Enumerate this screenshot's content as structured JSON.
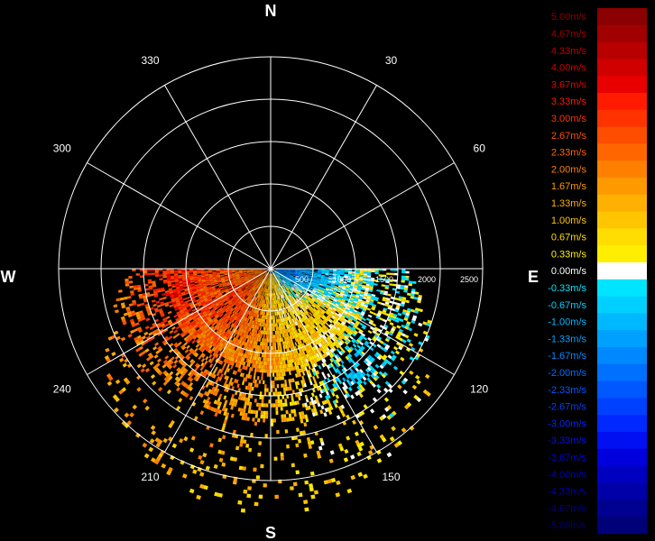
{
  "chart_data": {
    "type": "polar-radar-scan",
    "cardinal_labels": {
      "north": "N",
      "east": "E",
      "south": "S",
      "west": "W"
    },
    "azimuth_labels": [
      {
        "angle": 30,
        "text": "30"
      },
      {
        "angle": 60,
        "text": "60"
      },
      {
        "angle": 120,
        "text": "120"
      },
      {
        "angle": 150,
        "text": "150"
      },
      {
        "angle": 210,
        "text": "210"
      },
      {
        "angle": 240,
        "text": "240"
      },
      {
        "angle": 300,
        "text": "300"
      },
      {
        "angle": 330,
        "text": "330"
      }
    ],
    "range_max": 2500,
    "range_rings": [
      500,
      1000,
      1500,
      2000,
      2500
    ],
    "range_labels": [
      {
        "value": 500,
        "text": "500"
      },
      {
        "value": 1000,
        "text": "1000"
      },
      {
        "value": 1500,
        "text": "1500"
      },
      {
        "value": 2000,
        "text": "2000"
      },
      {
        "value": 2500,
        "text": "2500"
      }
    ],
    "spoke_step_deg": 30,
    "scan_sector_deg": [
      90,
      270
    ],
    "legend": {
      "entries": [
        {
          "label": "5.00m/s",
          "color": "#8b0000"
        },
        {
          "label": "4.67m/s",
          "color": "#a00000"
        },
        {
          "label": "4.33m/s",
          "color": "#b80000"
        },
        {
          "label": "4.00m/s",
          "color": "#d00000"
        },
        {
          "label": "3.67m/s",
          "color": "#e80000"
        },
        {
          "label": "3.33m/s",
          "color": "#ff1a00"
        },
        {
          "label": "3.00m/s",
          "color": "#ff3300"
        },
        {
          "label": "2.67m/s",
          "color": "#ff4d00"
        },
        {
          "label": "2.33m/s",
          "color": "#ff6600"
        },
        {
          "label": "2.00m/s",
          "color": "#ff8000"
        },
        {
          "label": "1.67m/s",
          "color": "#ff9900"
        },
        {
          "label": "1.33m/s",
          "color": "#ffb000"
        },
        {
          "label": "1.00m/s",
          "color": "#ffc600"
        },
        {
          "label": "0.67m/s",
          "color": "#ffdd00"
        },
        {
          "label": "0.33m/s",
          "color": "#ffee00"
        },
        {
          "label": "0.00m/s",
          "color": "#ffffff"
        },
        {
          "label": "-0.33m/s",
          "color": "#00e5ff"
        },
        {
          "label": "-0.67m/s",
          "color": "#00d0ff"
        },
        {
          "label": "-1.00m/s",
          "color": "#00b8ff"
        },
        {
          "label": "-1.33m/s",
          "color": "#00a0ff"
        },
        {
          "label": "-1.67m/s",
          "color": "#0088ff"
        },
        {
          "label": "-2.00m/s",
          "color": "#0070ff"
        },
        {
          "label": "-2.33m/s",
          "color": "#0058ff"
        },
        {
          "label": "-2.67m/s",
          "color": "#0040ff"
        },
        {
          "label": "-3.00m/s",
          "color": "#0028ff"
        },
        {
          "label": "-3.33m/s",
          "color": "#0010f0"
        },
        {
          "label": "-3.67m/s",
          "color": "#0000dd"
        },
        {
          "label": "-4.00m/s",
          "color": "#0000c0"
        },
        {
          "label": "-4.33m/s",
          "color": "#0000a8"
        },
        {
          "label": "-4.67m/s",
          "color": "#000090"
        },
        {
          "label": "-5.00m/s",
          "color": "#000078"
        }
      ]
    },
    "sample_bins": [
      {
        "az": 100,
        "range": 200,
        "v": -2.3
      },
      {
        "az": 110,
        "range": 250,
        "v": -2.0
      },
      {
        "az": 115,
        "range": 350,
        "v": -1.7
      },
      {
        "az": 105,
        "range": 400,
        "v": -1.3
      },
      {
        "az": 125,
        "range": 500,
        "v": 0.7
      },
      {
        "az": 135,
        "range": 700,
        "v": 1.3
      },
      {
        "az": 150,
        "range": 800,
        "v": 1.0
      },
      {
        "az": 165,
        "range": 600,
        "v": 0.3
      },
      {
        "az": 180,
        "range": 900,
        "v": 1.7
      },
      {
        "az": 200,
        "range": 800,
        "v": 2.3
      },
      {
        "az": 215,
        "range": 700,
        "v": 3.0
      },
      {
        "az": 230,
        "range": 600,
        "v": 3.3
      },
      {
        "az": 245,
        "range": 900,
        "v": 2.7
      },
      {
        "az": 255,
        "range": 1100,
        "v": 3.7
      },
      {
        "az": 200,
        "range": 1300,
        "v": 2.0
      },
      {
        "az": 140,
        "range": 1500,
        "v": -1.0
      }
    ]
  }
}
